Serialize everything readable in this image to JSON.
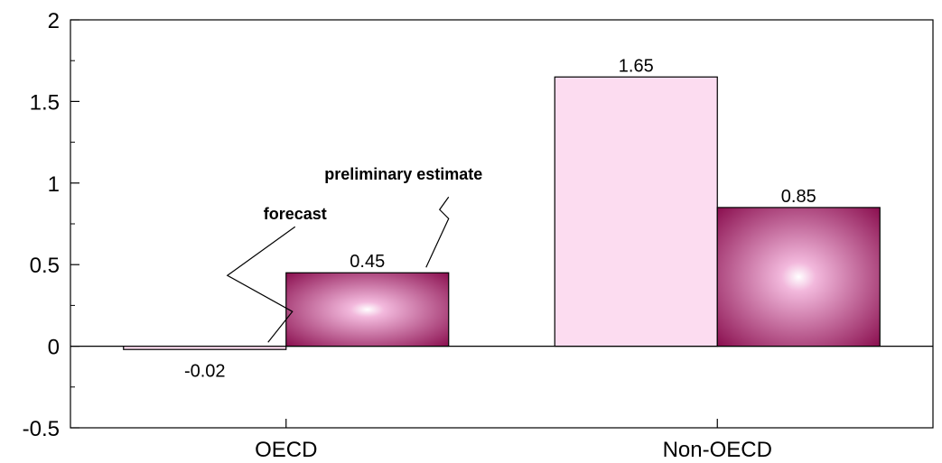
{
  "chart_data": {
    "type": "bar",
    "categories": [
      "OECD",
      "Non-OECD"
    ],
    "series": [
      {
        "values": [
          -0.02,
          1.65
        ],
        "color": "#fcdcf0"
      },
      {
        "values": [
          0.45,
          0.85
        ],
        "color": "#8b1050",
        "color_center": "#f2b8dc"
      }
    ],
    "data_labels": [
      [
        "-0.02",
        "1.65"
      ],
      [
        "0.45",
        "0.85"
      ]
    ],
    "ylim": [
      -0.5,
      2
    ],
    "yticks": [
      "-0.5",
      "0",
      "0.5",
      "1",
      "1.5",
      "2"
    ],
    "ytick_values": [
      -0.5,
      0,
      0.5,
      1,
      1.5,
      2
    ],
    "grid": false,
    "annotations": [
      {
        "text": "forecast",
        "series": 0,
        "category": 0
      },
      {
        "text": "preliminary estimate",
        "series": 1,
        "category": 0
      }
    ]
  }
}
